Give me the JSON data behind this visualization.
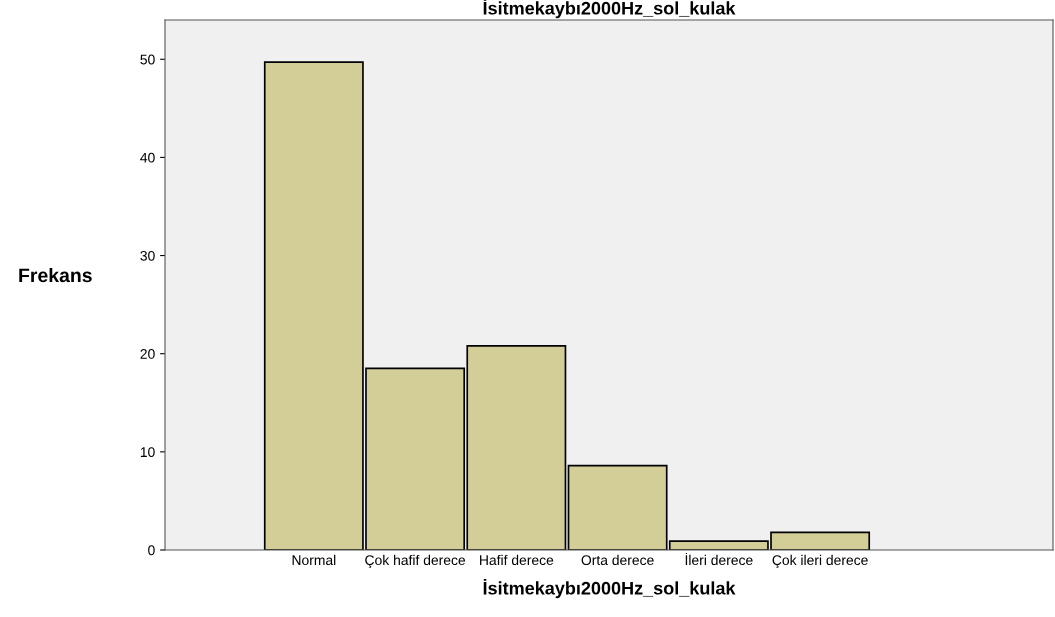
{
  "chart_data": {
    "type": "bar",
    "title": "İsitmekaybı2000Hz_sol_kulak",
    "xlabel": "İsitmekaybı2000Hz_sol_kulak",
    "ylabel": "Frekans",
    "categories": [
      "Normal",
      "Çok hafif derece",
      "Hafif derece",
      "Orta derece",
      "İleri derece",
      "Çok ileri derece"
    ],
    "values": [
      49.7,
      18.5,
      20.8,
      8.6,
      0.9,
      1.8
    ],
    "color": "#d3ce97",
    "ylim": [
      0,
      54
    ],
    "yticks": [
      0,
      10,
      20,
      30,
      40,
      50
    ],
    "grid": false,
    "legend": false
  }
}
